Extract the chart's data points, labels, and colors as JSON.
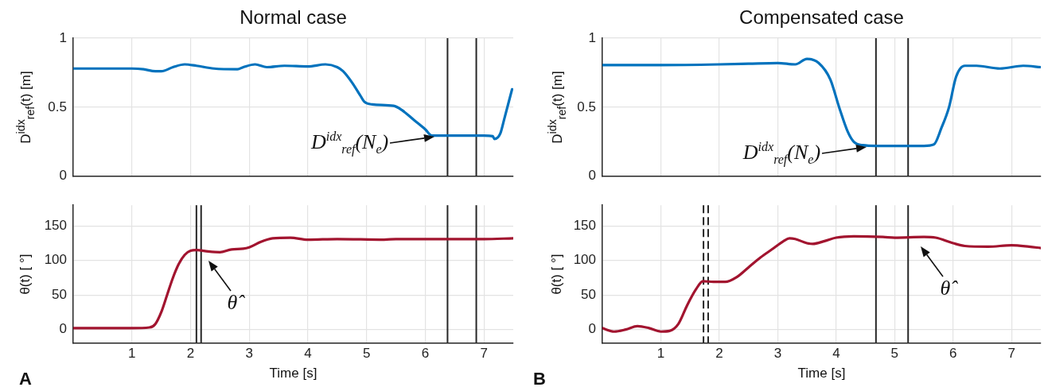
{
  "chart_data": [
    {
      "type": "line",
      "title": "Normal case",
      "ylabel": "D$^{idx}$$_{ref}$(t) [m]",
      "xlim": [
        0,
        7.5
      ],
      "xticks": [
        1,
        2,
        3,
        4,
        5,
        6,
        7
      ],
      "ylim": [
        0,
        1
      ],
      "yticks": [
        0,
        0.5,
        1
      ],
      "tick_labels": "y",
      "grid": true,
      "legend": false,
      "marker": "none",
      "line_style": "solid",
      "x": [
        0,
        0.5,
        1,
        1.2,
        1.4,
        1.5,
        1.7,
        1.9,
        2.1,
        2.4,
        2.8,
        2.9,
        3.1,
        3.3,
        3.6,
        4,
        4.3,
        4.5,
        4.6,
        4.75,
        4.9,
        4.96,
        5.1,
        5.46,
        5.6,
        5.8,
        6.0,
        6.11,
        6.5,
        7.0,
        7.15,
        7.18,
        7.28,
        7.35,
        7.48
      ],
      "series": [
        {
          "color": "#0072bd",
          "values": [
            0.78,
            0.78,
            0.78,
            0.775,
            0.76,
            0.76,
            0.79,
            0.81,
            0.8,
            0.78,
            0.775,
            0.79,
            0.81,
            0.79,
            0.8,
            0.795,
            0.81,
            0.79,
            0.76,
            0.68,
            0.58,
            0.54,
            0.52,
            0.51,
            0.48,
            0.41,
            0.34,
            0.295,
            0.295,
            0.295,
            0.29,
            0.27,
            0.31,
            0.42,
            0.63
          ]
        }
      ],
      "ref_lines": [
        {
          "axis": "x",
          "value": 6.38,
          "color": "#262626"
        },
        {
          "axis": "x",
          "value": 6.87,
          "color": "#262626"
        }
      ],
      "annotations": [
        {
          "text": "D$^{idx}$$_{ref}$(N$_{e}$)",
          "x": 6.17,
          "y": 0.295
        }
      ]
    },
    {
      "type": "line",
      "xlabel": "Time [s]",
      "ylabel": "θ(t) [ °]",
      "xlim": [
        0,
        7.5
      ],
      "xticks": [
        1,
        2,
        3,
        4,
        5,
        6,
        7
      ],
      "ylim": [
        -20,
        180
      ],
      "yticks": [
        0,
        50,
        100,
        150
      ],
      "grid": true,
      "legend": false,
      "marker": "none",
      "line_style": "solid",
      "x": [
        0,
        0.5,
        1,
        1.3,
        1.4,
        1.5,
        1.6,
        1.7,
        1.8,
        1.9,
        2.0,
        2.1,
        2.3,
        2.5,
        2.7,
        2.9,
        3.0,
        3.2,
        3.4,
        3.7,
        4.0,
        4.5,
        5.3,
        5.5,
        6,
        7,
        7.5
      ],
      "series": [
        {
          "color": "#a2142f",
          "values": [
            2,
            2,
            2,
            3,
            8,
            25,
            50,
            75,
            95,
            108,
            114,
            115,
            113,
            112,
            116,
            117,
            119,
            127,
            132,
            133,
            130,
            131,
            130,
            131,
            131,
            131,
            132
          ]
        }
      ],
      "ref_lines": [
        {
          "axis": "x",
          "value": 2.1,
          "color": "#262626"
        },
        {
          "axis": "x",
          "value": 2.18,
          "color": "#262626"
        },
        {
          "axis": "x",
          "value": 6.38,
          "color": "#262626"
        },
        {
          "axis": "x",
          "value": 6.87,
          "color": "#262626"
        }
      ],
      "annotations": [
        {
          "text": "θ̂",
          "x": 2.3,
          "y": 113
        },
        "A"
      ]
    },
    {
      "type": "line",
      "title": "Compensated case",
      "ylabel": "D$^{idx}$$_{ref}$(t) [m]",
      "xlim": [
        0,
        7.5
      ],
      "xticks": [
        1,
        2,
        3,
        4,
        5,
        6,
        7
      ],
      "ylim": [
        0,
        1
      ],
      "yticks": [
        0,
        0.5,
        1
      ],
      "tick_labels": "y",
      "grid": true,
      "legend": false,
      "marker": "none",
      "line_style": "solid",
      "x": [
        0,
        1,
        2,
        2.5,
        3,
        3.3,
        3.5,
        3.7,
        3.9,
        4.05,
        4.2,
        4.3,
        4.45,
        4.7,
        5,
        5.5,
        5.67,
        5.8,
        5.93,
        6.05,
        6.2,
        6.4,
        6.8,
        7.2,
        7.5
      ],
      "series": [
        {
          "color": "#0072bd",
          "values": [
            0.805,
            0.805,
            0.81,
            0.815,
            0.82,
            0.81,
            0.85,
            0.82,
            0.7,
            0.5,
            0.32,
            0.25,
            0.225,
            0.22,
            0.22,
            0.22,
            0.23,
            0.35,
            0.5,
            0.72,
            0.8,
            0.8,
            0.78,
            0.8,
            0.79
          ]
        }
      ],
      "ref_lines": [
        {
          "axis": "x",
          "value": 4.68,
          "color": "#262626"
        },
        {
          "axis": "x",
          "value": 5.23,
          "color": "#262626"
        }
      ],
      "annotations": [
        {
          "text": "D$^{idx}$$_{ref}$(N$_{e}$)",
          "x": 4.53,
          "y": 0.22
        }
      ]
    },
    {
      "type": "line",
      "xlabel": "Time [s]",
      "ylabel": "θ(t) [ °]",
      "xlim": [
        0,
        7.5
      ],
      "xticks": [
        1,
        2,
        3,
        4,
        5,
        6,
        7
      ],
      "ylim": [
        -20,
        180
      ],
      "yticks": [
        0,
        50,
        100,
        150
      ],
      "grid": true,
      "legend": false,
      "marker": "none",
      "line_style": "solid",
      "x": [
        0,
        0.2,
        0.4,
        0.6,
        0.8,
        1.0,
        1.15,
        1.3,
        1.45,
        1.6,
        1.72,
        1.9,
        2.1,
        2.3,
        2.5,
        2.7,
        2.9,
        3.1,
        3.2,
        3.3,
        3.5,
        3.6,
        3.8,
        4.0,
        4.3,
        4.8,
        5.0,
        5.5,
        5.7,
        6.0,
        6.2,
        6.6,
        7.0,
        7.3,
        7.5
      ],
      "series": [
        {
          "color": "#a2142f",
          "values": [
            2,
            -3,
            0,
            5,
            2,
            -3,
            -2,
            8,
            35,
            58,
            70,
            69,
            69,
            76,
            90,
            104,
            116,
            128,
            132,
            131,
            125,
            124,
            128,
            133,
            135,
            134,
            133,
            134,
            133,
            125,
            121,
            120,
            122,
            120,
            118
          ]
        }
      ],
      "ref_lines": [
        {
          "axis": "x",
          "value": 1.73,
          "color": "#262626",
          "line_style": "dashed"
        },
        {
          "axis": "x",
          "value": 1.81,
          "color": "#262626",
          "line_style": "dashed"
        },
        {
          "axis": "x",
          "value": 4.68,
          "color": "#262626"
        },
        {
          "axis": "x",
          "value": 5.23,
          "color": "#262626"
        }
      ],
      "annotations": [
        {
          "text": "θ̂",
          "x": 5.45,
          "y": 134
        },
        "B"
      ]
    }
  ]
}
